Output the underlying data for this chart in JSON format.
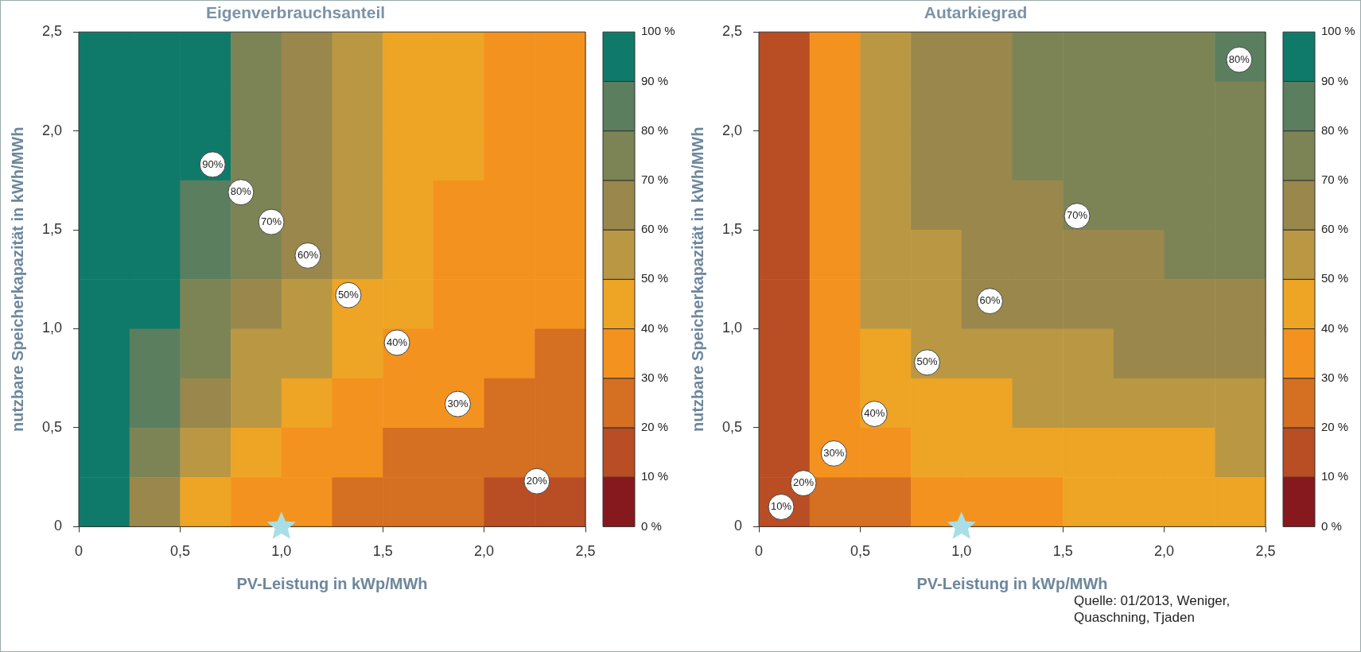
{
  "chart_data": [
    {
      "type": "heatmap",
      "title": "Eigenverbrauchsanteil",
      "xlabel": "PV-Leistung in kWp/MWh",
      "ylabel": "nutzbare Speicherkapazität in kWh/MWh",
      "xlim": [
        0,
        2.5
      ],
      "ylim": [
        0,
        2.5
      ],
      "xticks": [
        0,
        {
          "value": 0.5,
          "label": "0,5"
        },
        {
          "value": 1,
          "label": "1,0"
        },
        {
          "value": 1.5,
          "label": "1,5"
        },
        {
          "value": 2,
          "label": "2,0"
        },
        {
          "value": 2.5,
          "label": "2,5"
        }
      ],
      "yticks": [
        0,
        {
          "value": 0.5,
          "label": "0,5"
        },
        {
          "value": 1,
          "label": "1,0"
        },
        {
          "value": 1.5,
          "label": "1,5"
        },
        {
          "value": 2,
          "label": "2,0"
        },
        {
          "value": 2.5,
          "label": "2,5"
        }
      ],
      "clim": [
        0,
        100
      ],
      "cticks": [
        {
          "value": 0,
          "label": "0 %"
        },
        {
          "value": 10,
          "label": "10 %"
        },
        {
          "value": 20,
          "label": "20 %"
        },
        {
          "value": 30,
          "label": "30 %"
        },
        {
          "value": 40,
          "label": "40 %"
        },
        {
          "value": 50,
          "label": "50 %"
        },
        {
          "value": 60,
          "label": "60 %"
        },
        {
          "value": 70,
          "label": "70 %"
        },
        {
          "value": 80,
          "label": "80 %"
        },
        {
          "value": 90,
          "label": "90 %"
        },
        {
          "value": 100,
          "label": "100 %"
        }
      ],
      "colors": [
        "#85191e",
        "#b94d23",
        "#d56f21",
        "#f4921f",
        "#eea424",
        "#ba9843",
        "#9a874c",
        "#7c8455",
        "#5b7e5e",
        "#0f7a69"
      ],
      "cells": [
        [
          97,
          95,
          91,
          79,
          65,
          56,
          49,
          44,
          39,
          36
        ],
        [
          97,
          95,
          93,
          78,
          64,
          55,
          48,
          43,
          38,
          35
        ],
        [
          97,
          95,
          92,
          77,
          62,
          53,
          47,
          41,
          37,
          34
        ],
        [
          97,
          94,
          89,
          74,
          61,
          52,
          45,
          39,
          37,
          34
        ],
        [
          96,
          93,
          83,
          70,
          60,
          50,
          43,
          38,
          35,
          33
        ],
        [
          96,
          92,
          78,
          65,
          55,
          48,
          40,
          37,
          33,
          30
        ],
        [
          95,
          89,
          71,
          59,
          50,
          43,
          38,
          34,
          30,
          28
        ],
        [
          94,
          80,
          64,
          53,
          44,
          38,
          34,
          30,
          28,
          26
        ],
        [
          93,
          73,
          56,
          45,
          37,
          32,
          29,
          26,
          24,
          22
        ],
        [
          90,
          63,
          47,
          36,
          30,
          27,
          24,
          21,
          19,
          17
        ]
      ],
      "series": [
        {
          "type": "scatter",
          "x": [
            1.0
          ],
          "values": [
            0
          ],
          "color": "#a8dfe6",
          "marker": "star"
        }
      ],
      "annotations": [
        {
          "text": "90%",
          "x": 0.66,
          "y": 1.83
        },
        {
          "text": "80%",
          "x": 0.8,
          "y": 1.69
        },
        {
          "text": "70%",
          "x": 0.95,
          "y": 1.54
        },
        {
          "text": "60%",
          "x": 1.13,
          "y": 1.37
        },
        {
          "text": "50%",
          "x": 1.33,
          "y": 1.17
        },
        {
          "text": "40%",
          "x": 1.57,
          "y": 0.93
        },
        {
          "text": "30%",
          "x": 1.87,
          "y": 0.62
        },
        {
          "text": "20%",
          "x": 2.26,
          "y": 0.23
        }
      ]
    },
    {
      "type": "heatmap",
      "title": "Autarkiegrad",
      "xlabel": "PV-Leistung in kWp/MWh",
      "ylabel": "nutzbare Speicherkapazität in kWh/MWh",
      "xlim": [
        0,
        2.5
      ],
      "ylim": [
        0,
        2.5
      ],
      "xticks": [
        0,
        {
          "value": 0.5,
          "label": "0,5"
        },
        {
          "value": 1,
          "label": "1,0"
        },
        {
          "value": 1.5,
          "label": "1,5"
        },
        {
          "value": 2,
          "label": "2,0"
        },
        {
          "value": 2.5,
          "label": "2,5"
        }
      ],
      "yticks": [
        0,
        {
          "value": 0.5,
          "label": "0,5"
        },
        {
          "value": 1,
          "label": "1,0"
        },
        {
          "value": 1.5,
          "label": "1,5"
        },
        {
          "value": 2,
          "label": "2,0"
        },
        {
          "value": 2.5,
          "label": "2,5"
        }
      ],
      "clim": [
        0,
        100
      ],
      "cticks": [
        {
          "value": 0,
          "label": "0 %"
        },
        {
          "value": 10,
          "label": "10 %"
        },
        {
          "value": 20,
          "label": "20 %"
        },
        {
          "value": 30,
          "label": "30 %"
        },
        {
          "value": 40,
          "label": "40 %"
        },
        {
          "value": 50,
          "label": "50 %"
        },
        {
          "value": 60,
          "label": "60 %"
        },
        {
          "value": 70,
          "label": "70 %"
        },
        {
          "value": 80,
          "label": "80 %"
        },
        {
          "value": 90,
          "label": "90 %"
        },
        {
          "value": 100,
          "label": "100 %"
        }
      ],
      "colors": [
        "#85191e",
        "#b94d23",
        "#d56f21",
        "#f4921f",
        "#eea424",
        "#ba9843",
        "#9a874c",
        "#7c8455",
        "#5b7e5e",
        "#0f7a69"
      ],
      "cells": [
        [
          12,
          35,
          54,
          63,
          69,
          72,
          74,
          76,
          78,
          80
        ],
        [
          12,
          35,
          54,
          63,
          69,
          72,
          74,
          76,
          77,
          78
        ],
        [
          12,
          35,
          53,
          62,
          67,
          71,
          73,
          74,
          75,
          76
        ],
        [
          12,
          35,
          52,
          61,
          65,
          69,
          71,
          72,
          73,
          74
        ],
        [
          12,
          35,
          51,
          59,
          62,
          65,
          67,
          69,
          71,
          72
        ],
        [
          12,
          34,
          50,
          55,
          60,
          62,
          64,
          66,
          67,
          68
        ],
        [
          12,
          33,
          45,
          51,
          53,
          55,
          57,
          60,
          61,
          62
        ],
        [
          12,
          31,
          41,
          44,
          47,
          51,
          53,
          55,
          56,
          57
        ],
        [
          12,
          30,
          37,
          41,
          42,
          44,
          45,
          47,
          48,
          50
        ],
        [
          11,
          23,
          29,
          33,
          35,
          38,
          40,
          41,
          42,
          43
        ]
      ],
      "series": [
        {
          "type": "scatter",
          "x": [
            1.0
          ],
          "values": [
            0
          ],
          "color": "#a8dfe6",
          "marker": "star"
        }
      ],
      "annotations": [
        {
          "text": "10%",
          "x": 0.11,
          "y": 0.1
        },
        {
          "text": "20%",
          "x": 0.22,
          "y": 0.22
        },
        {
          "text": "30%",
          "x": 0.37,
          "y": 0.37
        },
        {
          "text": "40%",
          "x": 0.57,
          "y": 0.57
        },
        {
          "text": "50%",
          "x": 0.83,
          "y": 0.83
        },
        {
          "text": "60%",
          "x": 1.14,
          "y": 1.14
        },
        {
          "text": "70%",
          "x": 1.57,
          "y": 1.57
        },
        {
          "text": "80%",
          "x": 2.37,
          "y": 2.36
        },
        "Quelle: 01/2013, Weniger, Quaschning, Tjaden"
      ]
    }
  ]
}
